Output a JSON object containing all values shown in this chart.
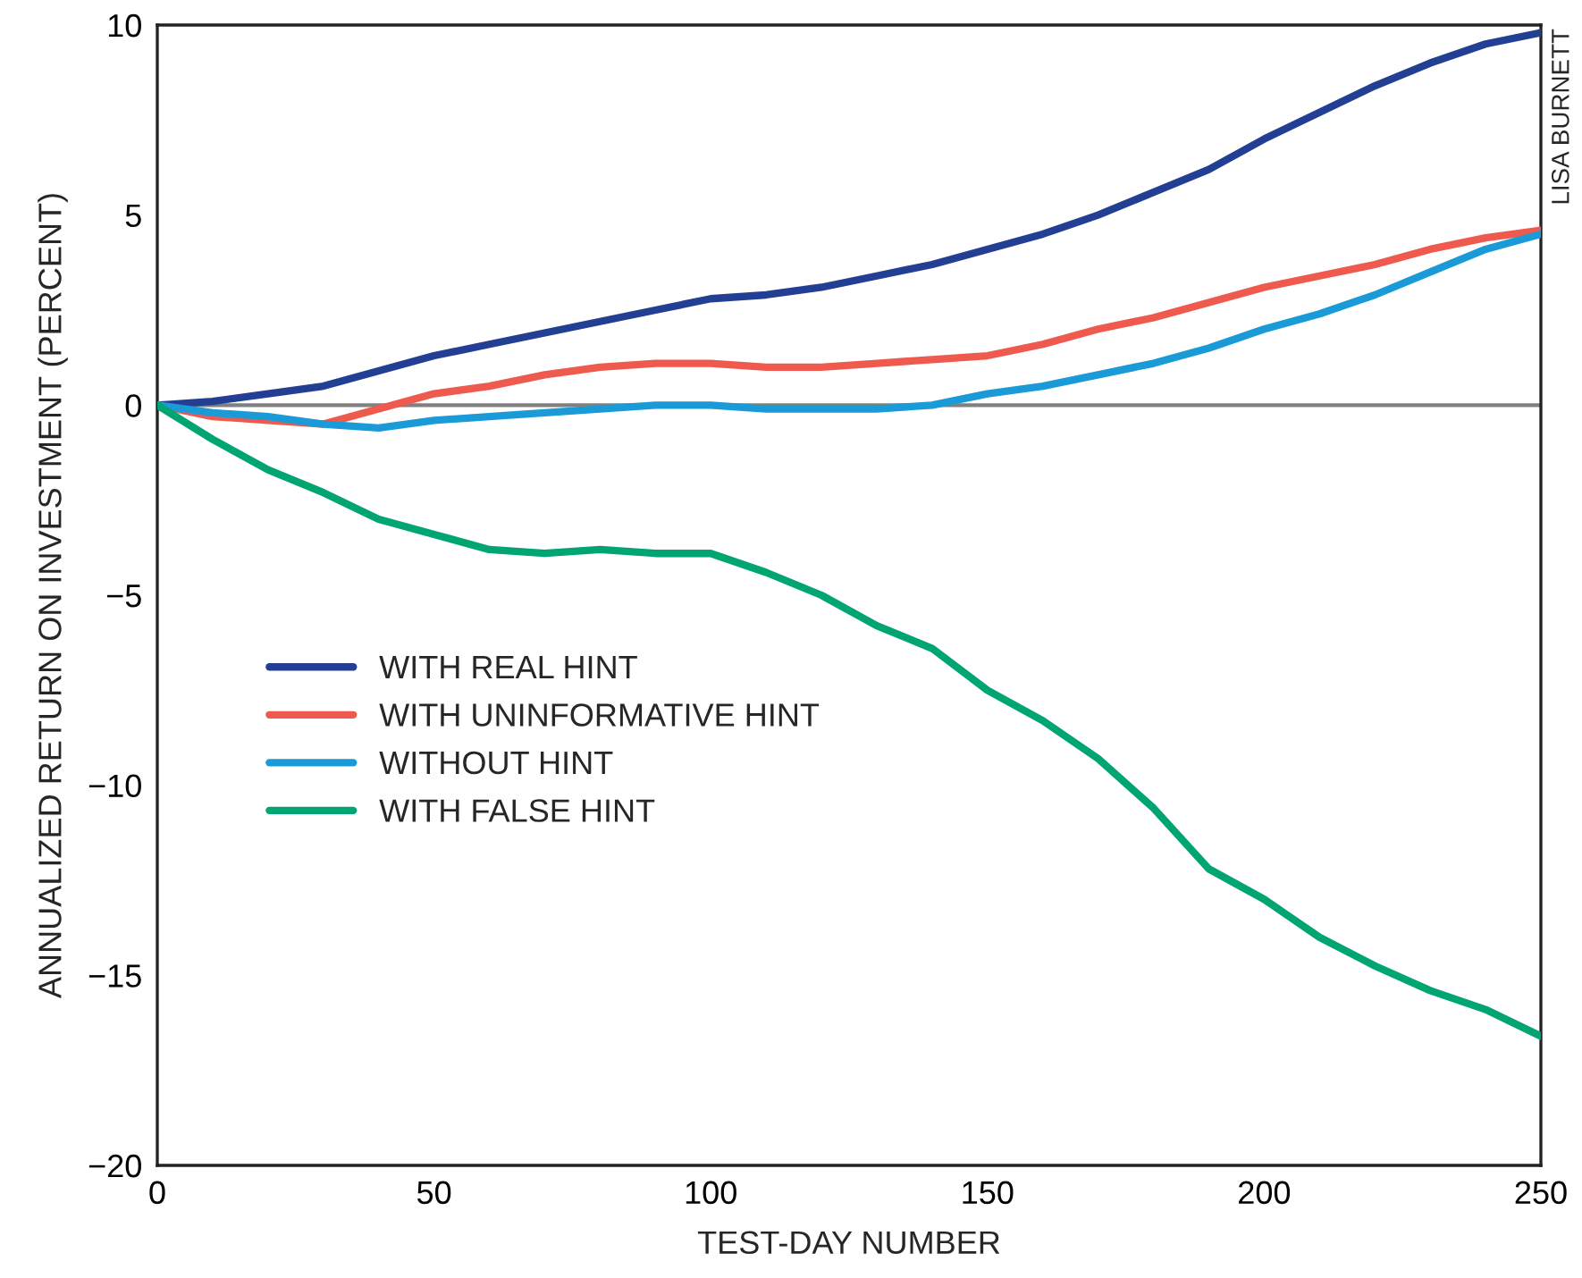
{
  "chart_data": {
    "type": "line",
    "xlabel": "TEST-DAY NUMBER",
    "ylabel": "ANNUALIZED RETURN ON INVESTMENT (PERCENT)",
    "x": [
      0,
      10,
      20,
      30,
      40,
      50,
      60,
      70,
      80,
      90,
      100,
      110,
      120,
      130,
      140,
      150,
      160,
      170,
      180,
      190,
      200,
      210,
      220,
      230,
      240,
      250
    ],
    "series": [
      {
        "name": "WITH REAL HINT",
        "color": "#233f94",
        "values": [
          0,
          0.1,
          0.3,
          0.5,
          0.9,
          1.3,
          1.6,
          1.9,
          2.2,
          2.5,
          2.8,
          2.9,
          3.1,
          3.4,
          3.7,
          4.1,
          4.5,
          5.0,
          5.6,
          6.2,
          7.0,
          7.7,
          8.4,
          9.0,
          9.5,
          9.8
        ]
      },
      {
        "name": "WITH UNINFORMATIVE HINT",
        "color": "#ef5a4f",
        "values": [
          0,
          -0.3,
          -0.4,
          -0.5,
          -0.1,
          0.3,
          0.5,
          0.8,
          1.0,
          1.1,
          1.1,
          1.0,
          1.0,
          1.1,
          1.2,
          1.3,
          1.6,
          2.0,
          2.3,
          2.7,
          3.1,
          3.4,
          3.7,
          4.1,
          4.4,
          4.6
        ]
      },
      {
        "name": "WITHOUT HINT",
        "color": "#1a9ad6",
        "values": [
          0,
          -0.2,
          -0.3,
          -0.5,
          -0.6,
          -0.4,
          -0.3,
          -0.2,
          -0.1,
          0,
          0,
          -0.1,
          -0.1,
          -0.1,
          0,
          0.3,
          0.5,
          0.8,
          1.1,
          1.5,
          2.0,
          2.4,
          2.9,
          3.5,
          4.1,
          4.5
        ]
      },
      {
        "name": "WITH FALSE HINT",
        "color": "#00a572",
        "values": [
          0,
          -0.9,
          -1.7,
          -2.3,
          -3.0,
          -3.4,
          -3.8,
          -3.9,
          -3.8,
          -3.9,
          -3.9,
          -4.4,
          -5.0,
          -5.8,
          -6.4,
          -7.5,
          -8.3,
          -9.3,
          -10.6,
          -12.2,
          -13.0,
          -14.0,
          -14.75,
          -15.4,
          -15.9,
          -16.6
        ]
      }
    ],
    "xlim": [
      0,
      250
    ],
    "xticks": [
      0,
      50,
      100,
      150,
      200,
      250
    ],
    "ylim": [
      -20,
      10
    ],
    "yticks": [
      -20,
      -15,
      -10,
      -5,
      0,
      5,
      10
    ],
    "ref_lines": [
      {
        "axis": "y",
        "value": 0,
        "color": "#808080"
      }
    ],
    "annotations": [
      "LISA BURNETT"
    ],
    "legend": "bottom left",
    "marker": "none",
    "line_style": "solid",
    "grid": false
  }
}
